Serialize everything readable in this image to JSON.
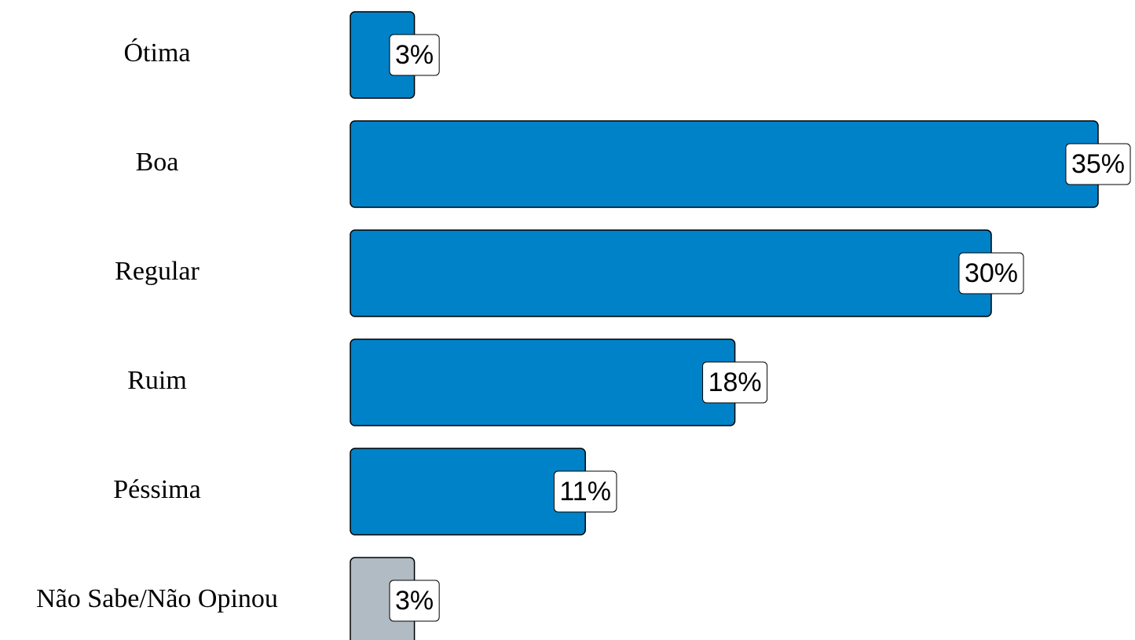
{
  "chart_data": {
    "type": "hbar",
    "categories": [
      "Ótima",
      "Boa",
      "Regular",
      "Ruim",
      "Péssima",
      "Não Sabe/Não Opinou"
    ],
    "values": [
      3,
      35,
      30,
      18,
      11,
      3
    ],
    "value_labels": [
      "3%",
      "35%",
      "30%",
      "18%",
      "11%",
      "3%"
    ],
    "colors": [
      "#0082c8",
      "#0082c8",
      "#0082c8",
      "#0082c8",
      "#0082c8",
      "#b1bbc3"
    ]
  }
}
